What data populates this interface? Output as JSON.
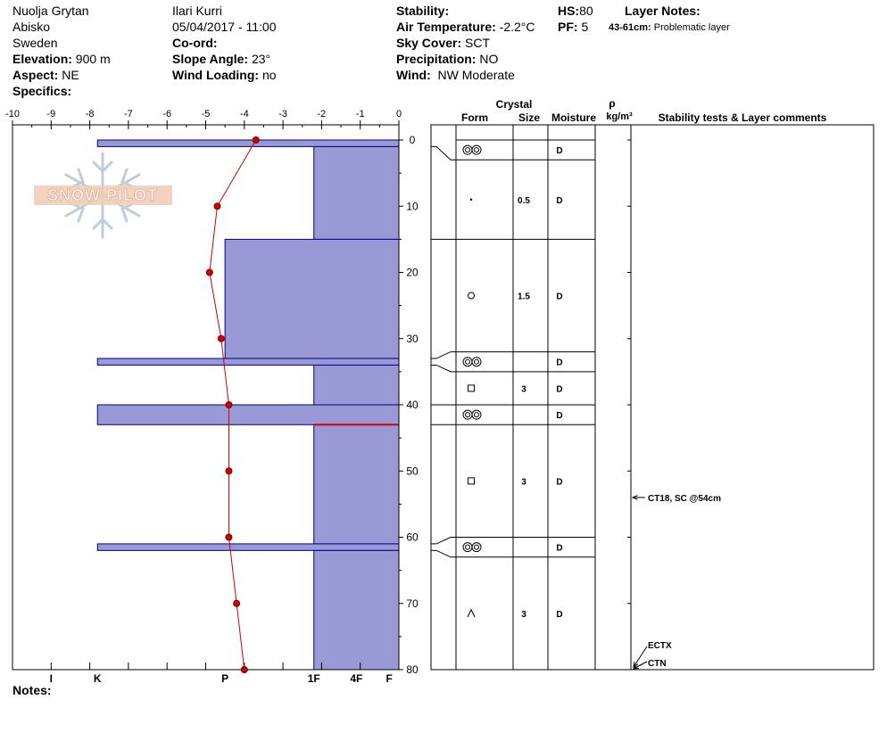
{
  "header": {
    "observer_location": "Nuolja Grytan",
    "region": "Abisko",
    "country": "Sweden",
    "elevation_label": "Elevation:",
    "elevation": "900 m",
    "aspect_label": "Aspect:",
    "aspect": "NE",
    "specifics_label": "Specifics:",
    "observer": "Ilari Kurri",
    "datetime": "05/04/2017 - 11:00",
    "coord_label": "Co-ord:",
    "slope_label": "Slope Angle:",
    "slope": "23°",
    "wind_loading_label": "Wind Loading:",
    "wind_loading": "no",
    "stability_label": "Stability:",
    "air_temp_label": "Air Temperature:",
    "air_temp": "-2.2°C",
    "sky_label": "Sky Cover:",
    "sky": "SCT",
    "precip_label": "Precipitation:",
    "precip": "NO",
    "wind_label": "Wind:",
    "wind": "NW Moderate",
    "hs_label": "HS:",
    "hs": "80",
    "pf_label": "PF:",
    "pf": "5",
    "layer_notes_label": "Layer Notes:",
    "layer_note_range": "43-61cm:",
    "layer_note_text": "Problematic layer",
    "notes_label": "Notes:"
  },
  "logo_text": "SNOW PILOT",
  "columns": {
    "crystal": "Crystal",
    "form": "Form",
    "size": "Size",
    "moisture": "Moisture",
    "rho": "ρ",
    "density_unit": "kg/m³",
    "stability": "Stability tests & Layer comments"
  },
  "colors": {
    "hardness_fill": "#9999d6",
    "hardness_stroke": "#000080",
    "temperature": "#cc0000",
    "problem_line": "#cc0000"
  },
  "chart_data": {
    "type": "snow-profile",
    "temperature_axis": {
      "ticks": [
        "-10",
        "-9",
        "-8",
        "-7",
        "-6",
        "-5",
        "-4",
        "-3",
        "-2",
        "-1",
        "0"
      ],
      "range": [
        -10,
        0
      ]
    },
    "depth_axis": {
      "ticks": [
        "0",
        "10",
        "20",
        "30",
        "40",
        "50",
        "60",
        "70",
        "80"
      ],
      "range": [
        0,
        80
      ]
    },
    "hardness_axis": {
      "ticks": [
        {
          "label": "I",
          "temp": -9
        },
        {
          "label": "K",
          "temp": -7.8
        },
        {
          "label": "P",
          "temp": -4.5
        },
        {
          "label": "1F",
          "temp": -2.2
        },
        {
          "label": "4F",
          "temp": -1.1
        },
        {
          "label": "F",
          "temp": -0.25
        }
      ]
    },
    "temperature_profile": [
      {
        "depth": 0,
        "temp": -3.7
      },
      {
        "depth": 10,
        "temp": -4.7
      },
      {
        "depth": 20,
        "temp": -4.9
      },
      {
        "depth": 30,
        "temp": -4.6
      },
      {
        "depth": 40,
        "temp": -4.4
      },
      {
        "depth": 50,
        "temp": -4.4
      },
      {
        "depth": 60,
        "temp": -4.4
      },
      {
        "depth": 70,
        "temp": -4.2
      },
      {
        "depth": 80,
        "temp": -4.0
      }
    ],
    "hardness_layers": [
      {
        "top": 0,
        "bottom": 1,
        "temp": -7.8
      },
      {
        "top": 1,
        "bottom": 15,
        "temp": -2.2
      },
      {
        "top": 15,
        "bottom": 33,
        "temp": -4.5
      },
      {
        "top": 33,
        "bottom": 34,
        "temp": -7.8
      },
      {
        "top": 34,
        "bottom": 40,
        "temp": -2.2
      },
      {
        "top": 40,
        "bottom": 43,
        "temp": -7.8
      },
      {
        "top": 43,
        "bottom": 61,
        "temp": -2.2
      },
      {
        "top": 61,
        "bottom": 62,
        "temp": -7.8
      },
      {
        "top": 62,
        "bottom": 80,
        "temp": -2.2
      }
    ],
    "problem_layer_depth": 43,
    "crystal_layers": [
      {
        "top": 0,
        "bottom": 3,
        "form": "rounded",
        "size": "",
        "moisture": "D"
      },
      {
        "top": 3,
        "bottom": 15,
        "form": "precip",
        "size": "0.5",
        "moisture": "D"
      },
      {
        "top": 15,
        "bottom": 32,
        "form": "round",
        "size": "1.5",
        "moisture": "D"
      },
      {
        "top": 32,
        "bottom": 35,
        "form": "rounded",
        "size": "",
        "moisture": "D"
      },
      {
        "top": 35,
        "bottom": 40,
        "form": "faceted",
        "size": "3",
        "moisture": "D"
      },
      {
        "top": 40,
        "bottom": 43,
        "form": "rounded",
        "size": "",
        "moisture": "D"
      },
      {
        "top": 43,
        "bottom": 60,
        "form": "faceted",
        "size": "3",
        "moisture": "D"
      },
      {
        "top": 60,
        "bottom": 63,
        "form": "rounded",
        "size": "",
        "moisture": "D"
      },
      {
        "top": 63,
        "bottom": 80,
        "form": "depth-hoar",
        "size": "3",
        "moisture": "D"
      }
    ],
    "stability_tests": [
      {
        "label": "CT18, SC @54cm",
        "depth": 54
      },
      {
        "label": "ECTX",
        "depth": 80
      },
      {
        "label": "CTN",
        "depth": 80
      }
    ]
  }
}
